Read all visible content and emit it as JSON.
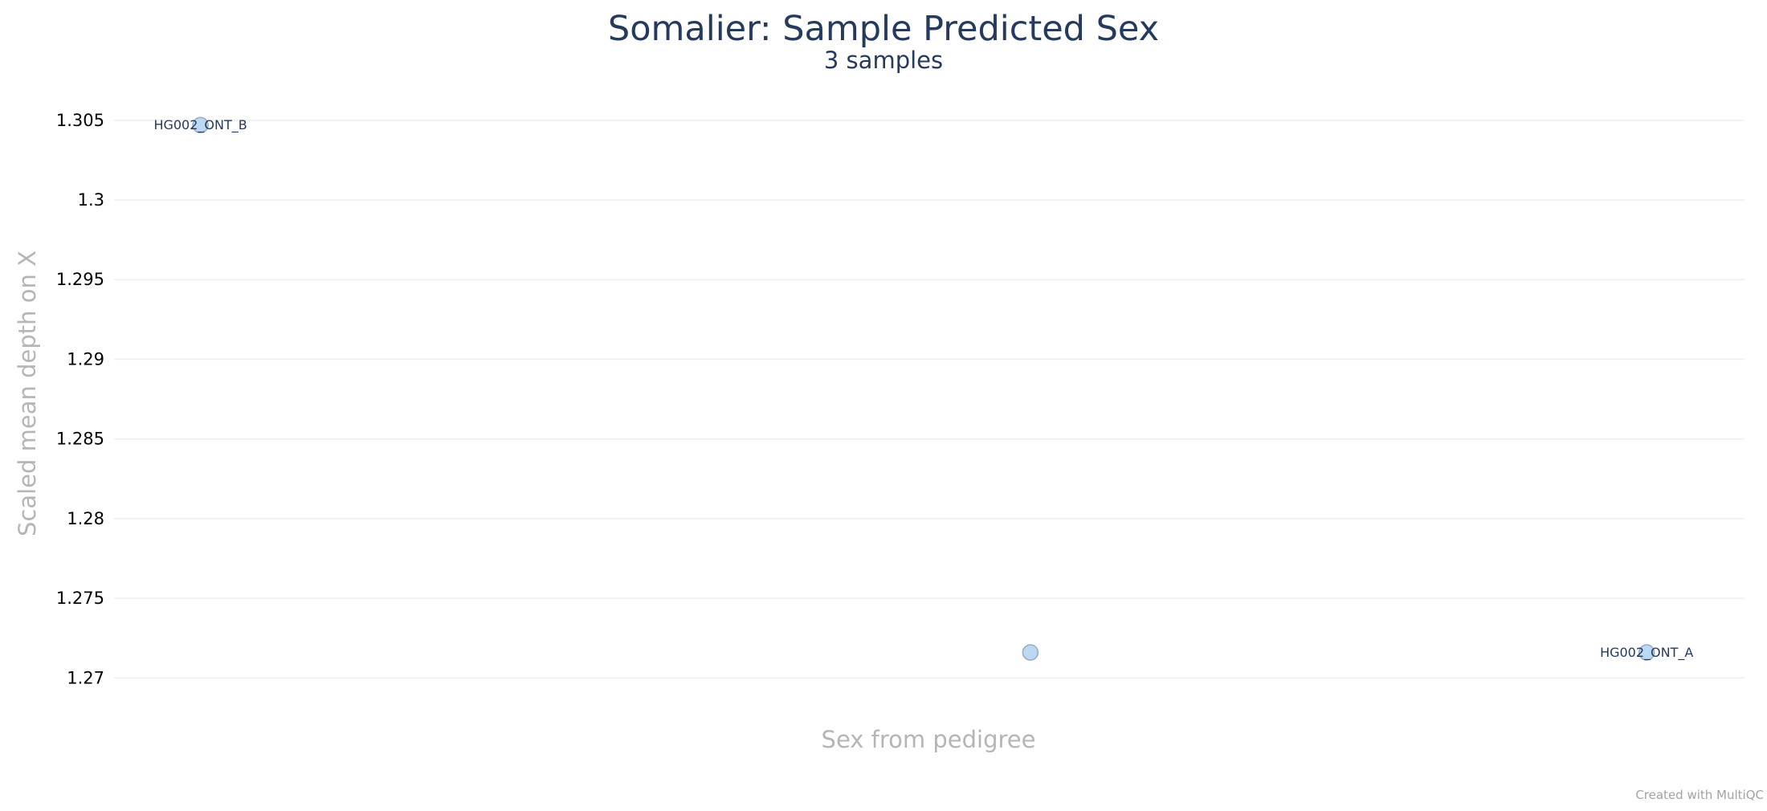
{
  "chart_data": {
    "type": "scatter",
    "title": "Somalier: Sample Predicted Sex",
    "subtitle": "3 samples",
    "xlabel": "Sex from pedigree",
    "ylabel": "Scaled mean depth on X",
    "ylim": [
      1.268,
      1.3065
    ],
    "yticks": [
      "1.27",
      "1.275",
      "1.28",
      "1.285",
      "1.29",
      "1.295",
      "1.3",
      "1.305"
    ],
    "ytick_values": [
      1.27,
      1.275,
      1.28,
      1.285,
      1.29,
      1.295,
      1.3,
      1.305
    ],
    "grid": true,
    "points": [
      {
        "x": 0.053,
        "y": 1.3047,
        "label": "HG002_ONT_B"
      },
      {
        "x": 0.562,
        "y": 1.2716,
        "label": ""
      },
      {
        "x": 0.94,
        "y": 1.2716,
        "label": "HG002_ONT_A"
      }
    ],
    "point_color": "#bcd9f1",
    "text_color": "#243a5e"
  },
  "footer": {
    "credit": "Created with MultiQC"
  }
}
